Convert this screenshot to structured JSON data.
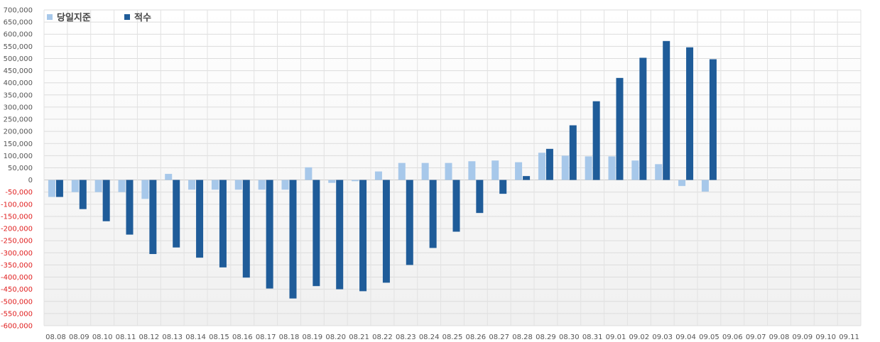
{
  "chart_data": {
    "type": "bar",
    "categories": [
      "08.08",
      "08.09",
      "08.10",
      "08.11",
      "08.12",
      "08.13",
      "08.14",
      "08.15",
      "08.16",
      "08.17",
      "08.18",
      "08.19",
      "08.20",
      "08.21",
      "08.22",
      "08.23",
      "08.24",
      "08.25",
      "08.26",
      "08.27",
      "08.28",
      "08.29",
      "08.30",
      "08.31",
      "09.01",
      "09.02",
      "09.03",
      "09.04",
      "09.05",
      "09.06",
      "09.07",
      "09.08",
      "09.09",
      "09.10",
      "09.11"
    ],
    "series": [
      {
        "name": "당일지준",
        "color": "#a7c8ea",
        "values": [
          -70000,
          -50000,
          -50000,
          -50000,
          -78000,
          25000,
          -40000,
          -40000,
          -40000,
          -40000,
          -40000,
          52000,
          -12000,
          -5000,
          35000,
          70000,
          70000,
          70000,
          77000,
          80000,
          73000,
          112000,
          100000,
          97000,
          97000,
          80000,
          65000,
          -25000,
          -48000,
          null,
          null,
          null,
          null,
          null,
          null
        ]
      },
      {
        "name": "적수",
        "color": "#1f5c99",
        "values": [
          -70000,
          -120000,
          -170000,
          -225000,
          -305000,
          -278000,
          -320000,
          -360000,
          -402000,
          -447000,
          -488000,
          -437000,
          -450000,
          -458000,
          -423000,
          -350000,
          -280000,
          -213000,
          -136000,
          -57000,
          16000,
          128000,
          225000,
          324000,
          420000,
          503000,
          572000,
          546000,
          497000,
          null,
          null,
          null,
          null,
          null,
          null
        ]
      }
    ],
    "yticks": [
      "700,000",
      "650,000",
      "600,000",
      "550,000",
      "500,000",
      "450,000",
      "400,000",
      "350,000",
      "300,000",
      "250,000",
      "200,000",
      "150,000",
      "100,000",
      "50,000",
      "0",
      "-50,000",
      "-100,000",
      "-150,000",
      "-200,000",
      "-250,000",
      "-300,000",
      "-350,000",
      "-400,000",
      "-450,000",
      "-500,000",
      "-550,000",
      "-600,000"
    ],
    "ylim": [
      -600000,
      700000
    ],
    "grid": true,
    "legend": "top-left",
    "negative_tick_color": "#e02020"
  }
}
